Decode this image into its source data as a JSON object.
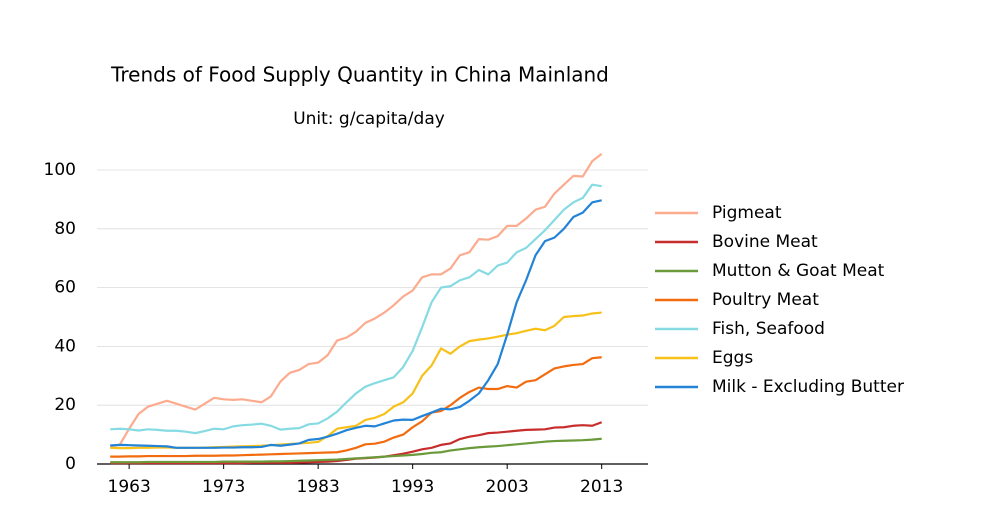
{
  "chart_data": {
    "type": "line",
    "title": "Trends of Food Supply Quantity in China Mainland",
    "subtitle": "Unit: g/capita/day",
    "x": [
      1961,
      1962,
      1963,
      1964,
      1965,
      1966,
      1967,
      1968,
      1969,
      1970,
      1971,
      1972,
      1973,
      1974,
      1975,
      1976,
      1977,
      1978,
      1979,
      1980,
      1981,
      1982,
      1983,
      1984,
      1985,
      1986,
      1987,
      1988,
      1989,
      1990,
      1991,
      1992,
      1993,
      1994,
      1995,
      1996,
      1997,
      1998,
      1999,
      2000,
      2001,
      2002,
      2003,
      2004,
      2005,
      2006,
      2007,
      2008,
      2009,
      2010,
      2011,
      2012,
      2013
    ],
    "series": [
      {
        "name": "Pigmeat",
        "color": "#fcab8f",
        "values": [
          6,
          6.5,
          12,
          17,
          19.5,
          20.5,
          21.5,
          20.5,
          19.5,
          18.5,
          20.5,
          22.5,
          22,
          21.8,
          22,
          21.5,
          21,
          23,
          28,
          31,
          32,
          34,
          34.5,
          37,
          42,
          43,
          45,
          48,
          49.5,
          51.5,
          54,
          57,
          59,
          63.5,
          64.5,
          64.5,
          66.5,
          71,
          72,
          76.5,
          76.3,
          77.5,
          81,
          81,
          83.5,
          86.5,
          87.5,
          92,
          95,
          98,
          97.8,
          103,
          105.5
        ]
      },
      {
        "name": "Bovine Meat",
        "color": "#c62d2c",
        "values": [
          0.3,
          0.3,
          0.3,
          0.3,
          0.3,
          0.3,
          0.3,
          0.3,
          0.3,
          0.3,
          0.3,
          0.3,
          0.3,
          0.3,
          0.3,
          0.4,
          0.4,
          0.4,
          0.4,
          0.4,
          0.5,
          0.6,
          0.7,
          0.8,
          1.0,
          1.4,
          1.8,
          2.0,
          2.2,
          2.5,
          3,
          3.5,
          4.2,
          5,
          5.5,
          6.5,
          7,
          8.5,
          9.3,
          9.8,
          10.5,
          10.7,
          11,
          11.3,
          11.6,
          11.7,
          11.8,
          12.4,
          12.5,
          13,
          13.2,
          13,
          14.2
        ]
      },
      {
        "name": "Mutton & Goat Meat",
        "color": "#6a9a3a",
        "values": [
          0.6,
          0.6,
          0.6,
          0.6,
          0.7,
          0.7,
          0.7,
          0.7,
          0.7,
          0.7,
          0.7,
          0.7,
          0.8,
          0.8,
          0.8,
          0.8,
          0.8,
          0.9,
          0.9,
          1.0,
          1.1,
          1.2,
          1.3,
          1.4,
          1.5,
          1.7,
          1.9,
          2.1,
          2.3,
          2.5,
          2.7,
          2.9,
          3.1,
          3.4,
          3.8,
          4.0,
          4.6,
          5.0,
          5.4,
          5.7,
          5.9,
          6.1,
          6.4,
          6.7,
          7.0,
          7.3,
          7.6,
          7.8,
          7.9,
          8.0,
          8.1,
          8.3,
          8.6
        ]
      },
      {
        "name": "Poultry Meat",
        "color": "#f26c0f",
        "values": [
          2.5,
          2.5,
          2.6,
          2.6,
          2.7,
          2.7,
          2.7,
          2.7,
          2.7,
          2.8,
          2.8,
          2.8,
          2.9,
          2.9,
          3.0,
          3.1,
          3.2,
          3.3,
          3.4,
          3.5,
          3.6,
          3.7,
          3.8,
          3.9,
          4.0,
          4.6,
          5.5,
          6.7,
          6.9,
          7.6,
          9,
          10,
          12.5,
          14.5,
          17.5,
          18,
          20,
          22.5,
          24.5,
          26,
          25.5,
          25.5,
          26.5,
          26,
          28,
          28.5,
          30.5,
          32.5,
          33.2,
          33.7,
          34,
          36,
          36.3
        ]
      },
      {
        "name": "Fish, Seafood",
        "color": "#86dbe3",
        "values": [
          11.8,
          12,
          11.8,
          11.4,
          11.8,
          11.6,
          11.3,
          11.3,
          11,
          10.5,
          11.2,
          12,
          11.8,
          12.8,
          13.2,
          13.4,
          13.7,
          13,
          11.7,
          12,
          12.2,
          13.5,
          13.8,
          15.5,
          17.8,
          21,
          24,
          26.3,
          27.5,
          28.5,
          29.5,
          33,
          38.5,
          46.5,
          55,
          60,
          60.5,
          62.5,
          63.5,
          66,
          64.5,
          67.5,
          68.5,
          72,
          73.5,
          76.5,
          79.5,
          83,
          86.5,
          89,
          90.5,
          95,
          94.5
        ]
      },
      {
        "name": "Eggs",
        "color": "#f7c11a",
        "values": [
          5.5,
          5.4,
          5.4,
          5.5,
          5.5,
          5.6,
          5.6,
          5.5,
          5.5,
          5.5,
          5.6,
          5.7,
          5.8,
          5.9,
          6.0,
          6.1,
          6.2,
          6.4,
          6.6,
          6.8,
          7.0,
          7.2,
          7.5,
          9.5,
          12,
          12.5,
          13,
          15,
          15.7,
          17,
          19.5,
          21,
          24,
          30,
          33.5,
          39.3,
          37.5,
          40,
          41.8,
          42.3,
          42.7,
          43.3,
          44,
          44.5,
          45.3,
          46,
          45.5,
          47,
          50,
          50.3,
          50.5,
          51.2,
          51.5
        ]
      },
      {
        "name": "Milk - Excluding Butter",
        "color": "#2383d6",
        "values": [
          6.3,
          6.5,
          6.4,
          6.3,
          6.2,
          6.1,
          6,
          5.5,
          5.5,
          5.5,
          5.5,
          5.5,
          5.6,
          5.6,
          5.7,
          5.7,
          5.8,
          6.5,
          6.2,
          6.6,
          7,
          8.2,
          8.5,
          9.3,
          10.3,
          11.5,
          12.3,
          13,
          12.8,
          13.8,
          14.8,
          15.1,
          15,
          16.3,
          17.5,
          18.8,
          18.6,
          19.4,
          21.5,
          24,
          28.5,
          34,
          44,
          55,
          62.5,
          71,
          75.8,
          77,
          80,
          84,
          85.5,
          89,
          89.7
        ]
      }
    ],
    "xlim": [
      1959.6,
      2017.9
    ],
    "xticks": [
      1963,
      1973,
      1983,
      1993,
      2003,
      2013
    ],
    "ylim": [
      0,
      110
    ],
    "yticks": [
      0,
      20,
      40,
      60,
      80,
      100
    ],
    "grid": true,
    "legend": "right"
  }
}
